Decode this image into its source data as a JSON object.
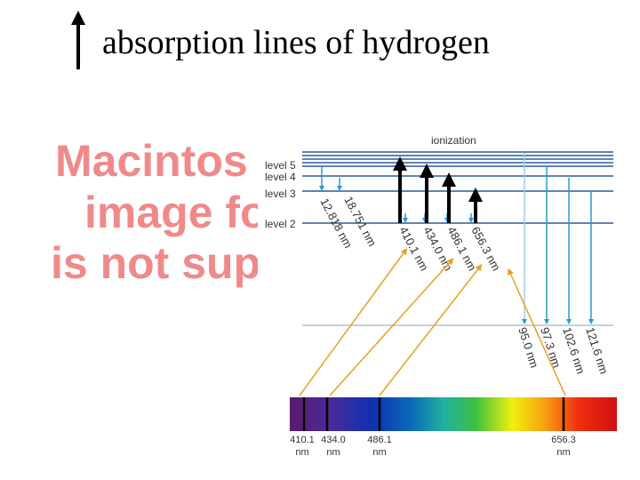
{
  "title": "absorption lines of hydrogen",
  "placeholder": {
    "lines": [
      "Macintos",
      "image fo",
      "is not sup"
    ]
  },
  "diagram": {
    "ionization": "ionization",
    "levels": [
      "level 5",
      "level 4",
      "level 3",
      "level 2"
    ],
    "to_level3": [
      "12.818 nm",
      "18.751 nm"
    ],
    "to_level2": [
      "410.1 nm",
      "434.0 nm",
      "486.1 nm",
      "656.3 nm"
    ],
    "to_level1": [
      "95.0 nm",
      "97.3 nm",
      "102.6 nm",
      "121.6 nm"
    ]
  },
  "spectrum": {
    "lines": [
      {
        "value": "410.1",
        "unit": "nm"
      },
      {
        "value": "434.0",
        "unit": "nm"
      },
      {
        "value": "486.1",
        "unit": "nm"
      },
      {
        "value": "656.3",
        "unit": "nm"
      }
    ]
  }
}
